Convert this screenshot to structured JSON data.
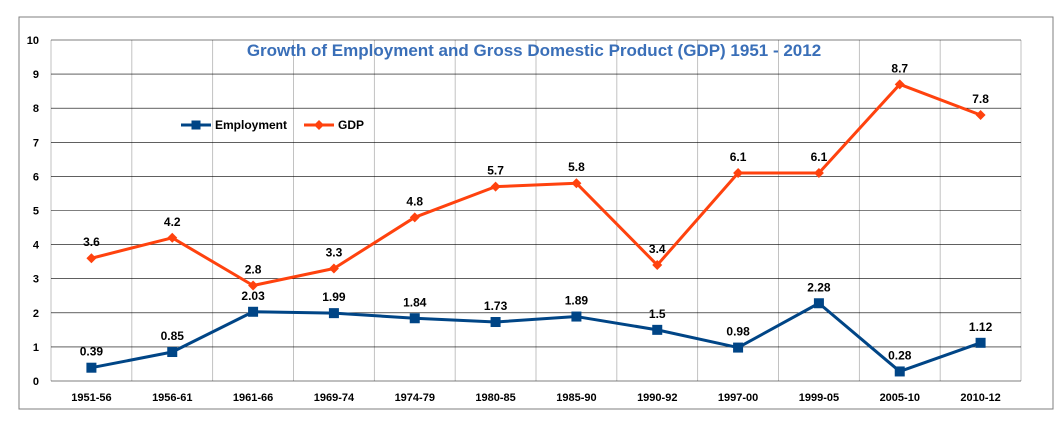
{
  "chart_data": {
    "type": "line",
    "title": "Growth of Employment and Gross Domestic Product (GDP) 1951 - 2012",
    "xlabel": "",
    "ylabel": "",
    "categories": [
      "1951-56",
      "1956-61",
      "1961-66",
      "1969-74",
      "1974-79",
      "1980-85",
      "1985-90",
      "1990-92",
      "1997-00",
      "1999-05",
      "2005-10",
      "2010-12"
    ],
    "y_ticks": [
      "0",
      "1",
      "2",
      "3",
      "4",
      "5",
      "6",
      "7",
      "8",
      "9",
      "10"
    ],
    "ylim": [
      0,
      10
    ],
    "grid": true,
    "legend": "top-left",
    "series": [
      {
        "name": "Employment",
        "color": "#004586",
        "marker": "square",
        "values": [
          0.39,
          0.85,
          2.03,
          1.99,
          1.84,
          1.73,
          1.89,
          1.5,
          0.98,
          2.28,
          0.28,
          1.12
        ],
        "labels": [
          "0.39",
          "0.85",
          "2.03",
          "1.99",
          "1.84",
          "1.73",
          "1.89",
          "1.5",
          "0.98",
          "2.28",
          "0.28",
          "1.12"
        ]
      },
      {
        "name": "GDP",
        "color": "#ff420e",
        "marker": "diamond",
        "values": [
          3.6,
          4.2,
          2.8,
          3.3,
          4.8,
          5.7,
          5.8,
          3.4,
          6.1,
          6.1,
          8.7,
          7.8
        ],
        "labels": [
          "3.6",
          "4.2",
          "2.8",
          "3.3",
          "4.8",
          "5.7",
          "5.8",
          "3.4",
          "6.1",
          "6.1",
          "8.7",
          "7.8"
        ]
      }
    ]
  }
}
